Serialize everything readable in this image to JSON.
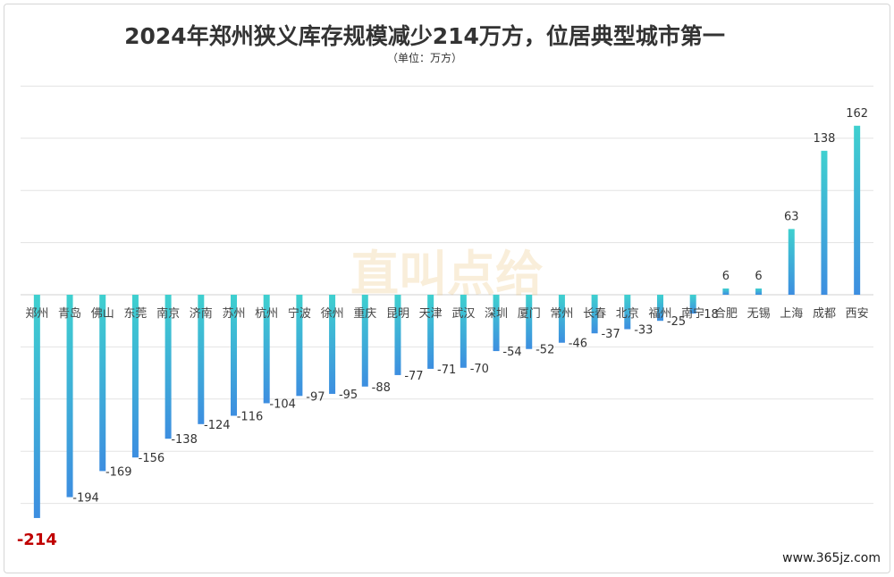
{
  "chart_data": {
    "type": "bar",
    "title": "2024年郑州狭义库存规模减少214万方，位居典型城市第一",
    "subtitle": "（单位：万方）",
    "categories": [
      "郑州",
      "青岛",
      "佛山",
      "东莞",
      "南京",
      "济南",
      "苏州",
      "杭州",
      "宁波",
      "徐州",
      "重庆",
      "昆明",
      "天津",
      "武汉",
      "深圳",
      "厦门",
      "常州",
      "长春",
      "北京",
      "福州",
      "南宁",
      "合肥",
      "无锡",
      "上海",
      "成都",
      "西安"
    ],
    "values": [
      -214,
      -194,
      -169,
      -156,
      -138,
      -124,
      -116,
      -104,
      -97,
      -95,
      -88,
      -77,
      -71,
      -70,
      -54,
      -52,
      -46,
      -37,
      -33,
      -25,
      -18,
      6,
      6,
      63,
      138,
      162
    ],
    "ylim": [
      -250,
      200
    ],
    "grid": true,
    "highlight": {
      "category": "郑州",
      "color": "#c00000"
    },
    "colors": {
      "bar_top": "#3fd0cf",
      "bar_bottom": "#3d8ee0",
      "highlight_label": "#c00000"
    }
  },
  "watermark": "直叫点给",
  "source": "www.365jz.com"
}
